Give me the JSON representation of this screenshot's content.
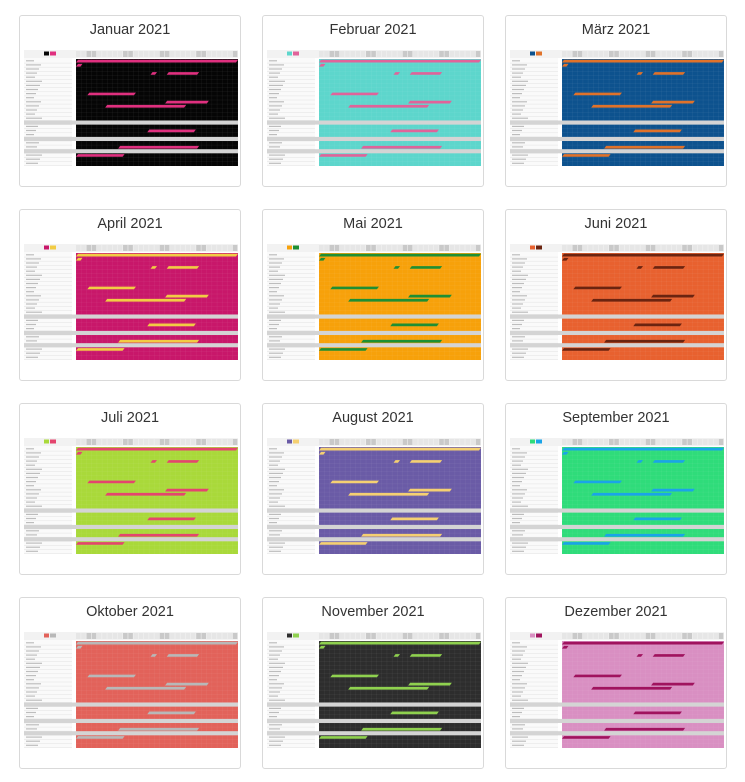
{
  "months": [
    {
      "title": "Januar 2021",
      "bg": "#050505",
      "bar": "#e0307f",
      "chip1": "#050505",
      "chip2": "#e0307f"
    },
    {
      "title": "Februar 2021",
      "bg": "#5dd6cc",
      "bar": "#e0639a",
      "chip1": "#5dd6cc",
      "chip2": "#e0639a"
    },
    {
      "title": "März 2021",
      "bg": "#0d528e",
      "bar": "#e0722a",
      "chip1": "#0d528e",
      "chip2": "#e0722a"
    },
    {
      "title": "April 2021",
      "bg": "#c8176a",
      "bar": "#f2cc44",
      "chip1": "#c8176a",
      "chip2": "#f2cc44"
    },
    {
      "title": "Mai 2021",
      "bg": "#f7a10a",
      "bar": "#1e8f33",
      "chip1": "#f7a10a",
      "chip2": "#1e8f33"
    },
    {
      "title": "Juni 2021",
      "bg": "#e8612f",
      "bar": "#6b2410",
      "chip1": "#e8612f",
      "chip2": "#6b2410"
    },
    {
      "title": "Juli 2021",
      "bg": "#a9d93a",
      "bar": "#e4456e",
      "chip1": "#a9d93a",
      "chip2": "#e4456e"
    },
    {
      "title": "August 2021",
      "bg": "#6a5ba6",
      "bar": "#f5d072",
      "chip1": "#6a5ba6",
      "chip2": "#f5d072"
    },
    {
      "title": "September 2021",
      "bg": "#2fdc7a",
      "bar": "#1aa4e8",
      "chip1": "#2fdc7a",
      "chip2": "#1aa4e8"
    },
    {
      "title": "Oktober 2021",
      "bg": "#e2625a",
      "bar": "#b8b8b8",
      "chip1": "#e2625a",
      "chip2": "#b8b8b8"
    },
    {
      "title": "November 2021",
      "bg": "#2d2d2d",
      "bar": "#8fd14f",
      "chip1": "#2d2d2d",
      "chip2": "#8fd14f"
    },
    {
      "title": "Dezember 2021",
      "bg": "#d98fc2",
      "bar": "#a0135e",
      "chip1": "#d98fc2",
      "chip2": "#a0135e"
    }
  ]
}
